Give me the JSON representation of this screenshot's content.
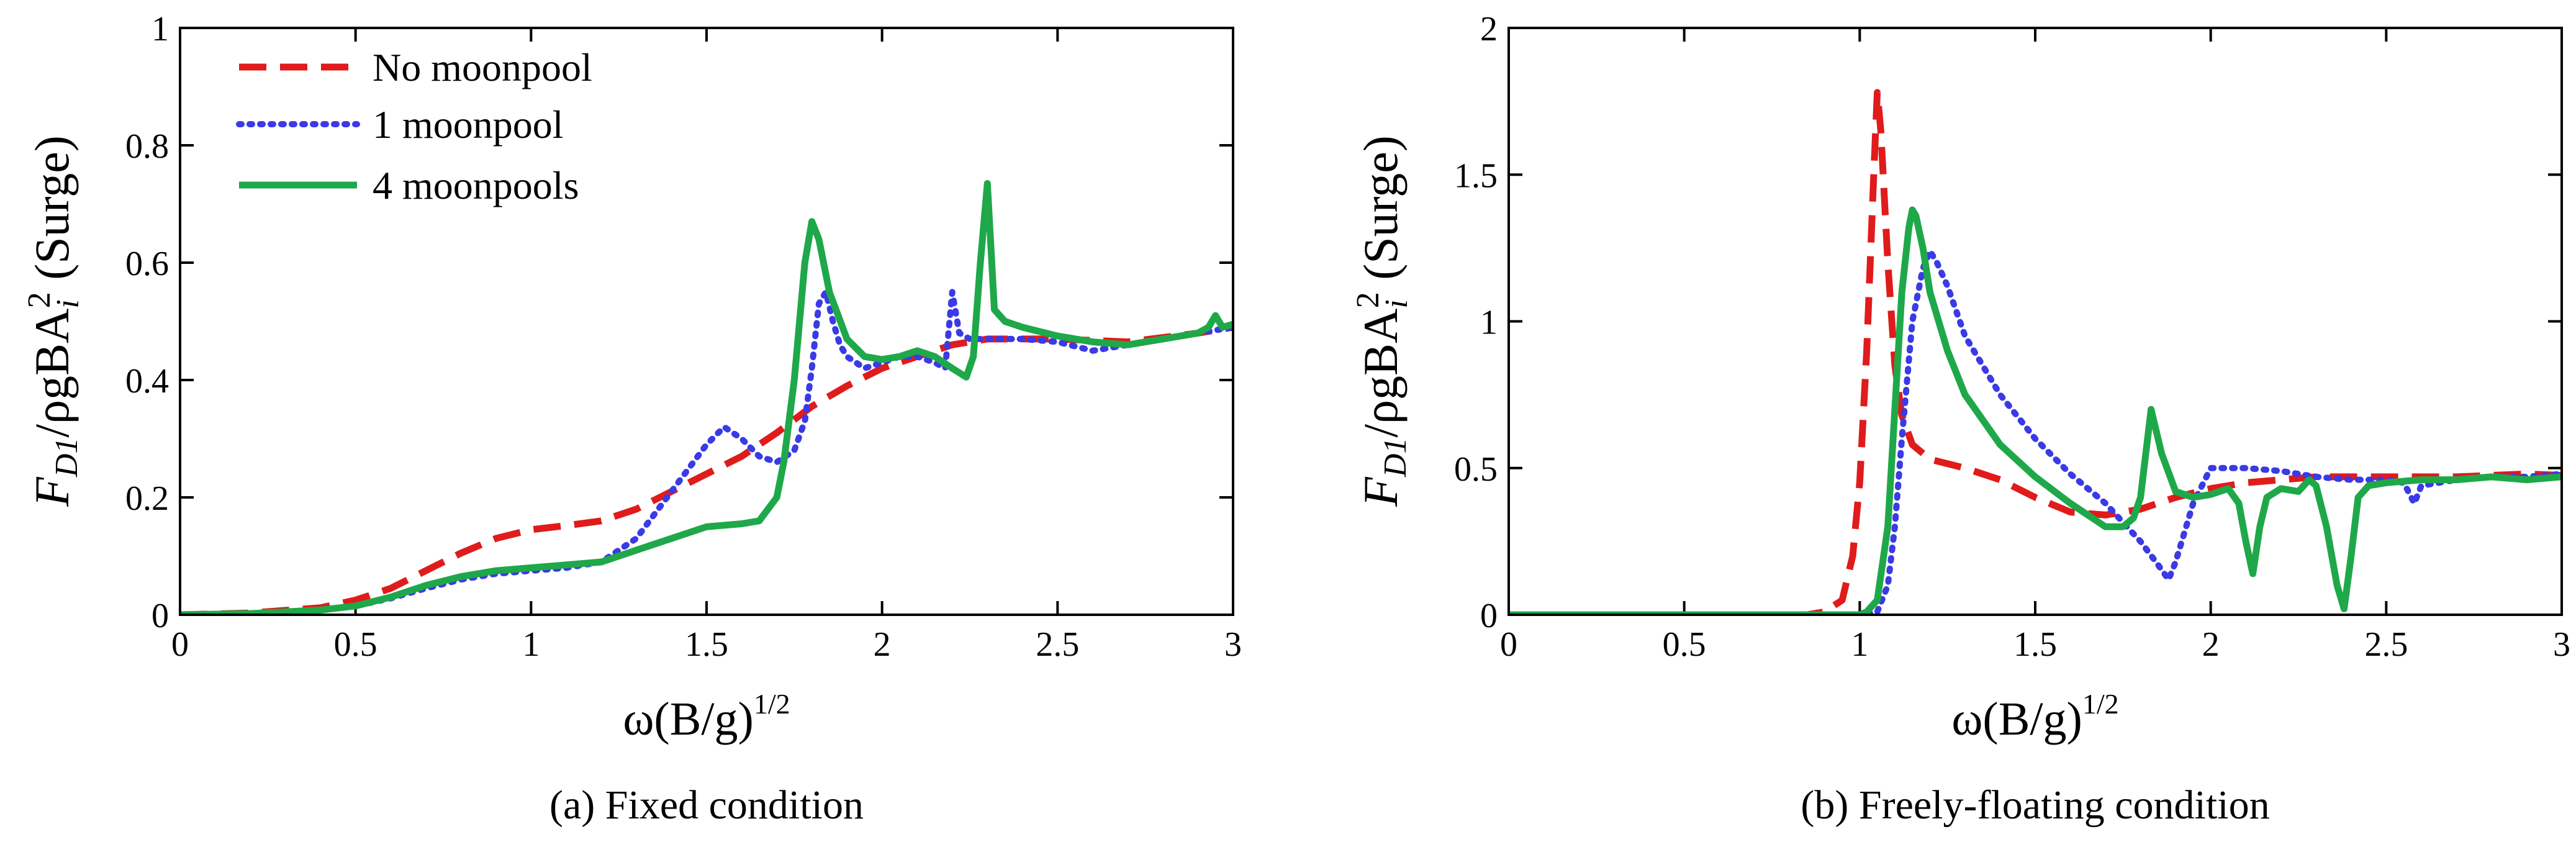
{
  "colors": {
    "no_moonpool": "#e01b1b",
    "one_moonpool": "#3a3ae6",
    "four_moonpools": "#1fa84a",
    "axis": "#000000"
  },
  "chart_data": [
    {
      "type": "line",
      "caption_tag": "(a)",
      "caption_text": "Fixed condition",
      "ylabel": "F_D1/ρgBA_i² (Surge)",
      "ylabel_parts": {
        "F": "F",
        "sub": "D1",
        "mid": "/ρgBA",
        "sub2": "i",
        "sup": "2",
        "tail": " (Surge)"
      },
      "xlabel": "ω(B/g)^1/2",
      "xlabel_parts": {
        "base": "ω(B/g)",
        "sup": "1/2"
      },
      "xlim": [
        0,
        3
      ],
      "ylim": [
        0,
        1
      ],
      "xticks": [
        0,
        0.5,
        1,
        1.5,
        2,
        2.5,
        3
      ],
      "xtick_labels": [
        "0",
        "0.5",
        "1",
        "1.5",
        "2",
        "2.5",
        "3"
      ],
      "yticks": [
        0,
        0.2,
        0.4,
        0.6,
        0.8,
        1
      ],
      "ytick_labels": [
        "0",
        "0.2",
        "0.4",
        "0.6",
        "0.8",
        "1"
      ],
      "legend": {
        "position": "top-left",
        "entries": [
          "No moonpool",
          "1 moonpool",
          "4 moonpools"
        ]
      },
      "series": [
        {
          "name": "No moonpool",
          "style": "dashed",
          "x": [
            0,
            0.2,
            0.4,
            0.5,
            0.6,
            0.7,
            0.8,
            0.9,
            1.0,
            1.1,
            1.2,
            1.3,
            1.4,
            1.5,
            1.6,
            1.7,
            1.8,
            1.9,
            2.0,
            2.1,
            2.2,
            2.3,
            2.5,
            2.7,
            2.9,
            3.0
          ],
          "y": [
            0,
            0.003,
            0.012,
            0.025,
            0.045,
            0.075,
            0.105,
            0.13,
            0.145,
            0.152,
            0.16,
            0.18,
            0.21,
            0.24,
            0.27,
            0.31,
            0.355,
            0.39,
            0.42,
            0.44,
            0.46,
            0.47,
            0.47,
            0.465,
            0.48,
            0.49
          ]
        },
        {
          "name": "1 moonpool",
          "style": "dotted",
          "x": [
            0,
            0.2,
            0.4,
            0.5,
            0.6,
            0.7,
            0.8,
            0.9,
            1.0,
            1.1,
            1.2,
            1.3,
            1.4,
            1.5,
            1.55,
            1.6,
            1.65,
            1.7,
            1.75,
            1.78,
            1.8,
            1.82,
            1.84,
            1.86,
            1.88,
            1.9,
            1.95,
            2.0,
            2.05,
            2.1,
            2.15,
            2.18,
            2.2,
            2.22,
            2.25,
            2.3,
            2.4,
            2.5,
            2.6,
            2.7,
            2.8,
            2.9,
            3.0
          ],
          "y": [
            0,
            0.002,
            0.008,
            0.015,
            0.028,
            0.045,
            0.06,
            0.07,
            0.075,
            0.08,
            0.09,
            0.13,
            0.21,
            0.29,
            0.32,
            0.3,
            0.27,
            0.26,
            0.28,
            0.33,
            0.42,
            0.53,
            0.55,
            0.5,
            0.46,
            0.44,
            0.42,
            0.43,
            0.44,
            0.44,
            0.43,
            0.42,
            0.55,
            0.48,
            0.47,
            0.47,
            0.47,
            0.465,
            0.45,
            0.46,
            0.47,
            0.48,
            0.49
          ]
        },
        {
          "name": "4 moonpools",
          "style": "solid",
          "x": [
            0,
            0.2,
            0.4,
            0.5,
            0.6,
            0.7,
            0.8,
            0.9,
            1.0,
            1.1,
            1.2,
            1.3,
            1.4,
            1.5,
            1.6,
            1.65,
            1.7,
            1.72,
            1.75,
            1.78,
            1.8,
            1.82,
            1.85,
            1.9,
            1.95,
            2.0,
            2.05,
            2.1,
            2.15,
            2.2,
            2.24,
            2.26,
            2.28,
            2.3,
            2.32,
            2.35,
            2.4,
            2.5,
            2.6,
            2.7,
            2.8,
            2.9,
            2.93,
            2.95,
            2.97,
            3.0
          ],
          "y": [
            0,
            0.002,
            0.008,
            0.015,
            0.03,
            0.05,
            0.065,
            0.075,
            0.08,
            0.085,
            0.09,
            0.11,
            0.13,
            0.15,
            0.155,
            0.16,
            0.2,
            0.26,
            0.4,
            0.6,
            0.67,
            0.64,
            0.55,
            0.47,
            0.44,
            0.435,
            0.44,
            0.45,
            0.44,
            0.42,
            0.405,
            0.44,
            0.6,
            0.735,
            0.52,
            0.5,
            0.49,
            0.475,
            0.465,
            0.46,
            0.47,
            0.48,
            0.49,
            0.51,
            0.49,
            0.495
          ]
        }
      ]
    },
    {
      "type": "line",
      "caption_tag": "(b)",
      "caption_text": "Freely-floating condition",
      "ylabel": "F_D1/ρgBA_i² (Surge)",
      "ylabel_parts": {
        "F": "F",
        "sub": "D1",
        "mid": "/ρgBA",
        "sub2": "i",
        "sup": "2",
        "tail": " (Surge)"
      },
      "xlabel": "ω(B/g)^1/2",
      "xlabel_parts": {
        "base": "ω(B/g)",
        "sup": "1/2"
      },
      "xlim": [
        0,
        3
      ],
      "ylim": [
        0,
        2
      ],
      "xticks": [
        0,
        0.5,
        1,
        1.5,
        2,
        2.5,
        3
      ],
      "xtick_labels": [
        "0",
        "0.5",
        "1",
        "1.5",
        "2",
        "2.5",
        "3"
      ],
      "yticks": [
        0,
        0.5,
        1,
        1.5,
        2
      ],
      "ytick_labels": [
        "0",
        "0.5",
        "1",
        "1.5",
        "2"
      ],
      "series": [
        {
          "name": "No moonpool",
          "style": "dashed",
          "x": [
            0,
            0.5,
            0.85,
            0.9,
            0.95,
            0.98,
            1.0,
            1.02,
            1.04,
            1.05,
            1.06,
            1.08,
            1.1,
            1.12,
            1.15,
            1.2,
            1.3,
            1.4,
            1.5,
            1.6,
            1.7,
            1.8,
            1.9,
            2.0,
            2.1,
            2.2,
            2.3,
            2.5,
            2.7,
            2.9,
            3.0
          ],
          "y": [
            0,
            0,
            0,
            0.01,
            0.05,
            0.2,
            0.45,
            0.9,
            1.5,
            1.78,
            1.65,
            1.2,
            0.85,
            0.68,
            0.58,
            0.53,
            0.5,
            0.46,
            0.4,
            0.35,
            0.34,
            0.36,
            0.4,
            0.43,
            0.45,
            0.46,
            0.47,
            0.47,
            0.47,
            0.48,
            0.475
          ]
        },
        {
          "name": "1 moonpool",
          "style": "dotted",
          "x": [
            0,
            0.5,
            0.9,
            1.0,
            1.05,
            1.08,
            1.1,
            1.12,
            1.15,
            1.18,
            1.2,
            1.22,
            1.25,
            1.3,
            1.4,
            1.5,
            1.6,
            1.7,
            1.8,
            1.85,
            1.88,
            1.9,
            1.95,
            2.0,
            2.1,
            2.2,
            2.3,
            2.4,
            2.5,
            2.55,
            2.58,
            2.6,
            2.7,
            2.8,
            2.9,
            3.0
          ],
          "y": [
            0,
            0,
            0,
            0,
            0.01,
            0.1,
            0.3,
            0.6,
            1.0,
            1.18,
            1.24,
            1.2,
            1.12,
            0.95,
            0.75,
            0.6,
            0.48,
            0.38,
            0.25,
            0.17,
            0.12,
            0.18,
            0.38,
            0.5,
            0.5,
            0.49,
            0.47,
            0.46,
            0.46,
            0.45,
            0.38,
            0.44,
            0.46,
            0.47,
            0.47,
            0.48
          ]
        },
        {
          "name": "4 moonpools",
          "style": "solid",
          "x": [
            0,
            0.5,
            1.0,
            1.02,
            1.05,
            1.08,
            1.1,
            1.12,
            1.14,
            1.15,
            1.16,
            1.18,
            1.2,
            1.25,
            1.3,
            1.4,
            1.5,
            1.6,
            1.7,
            1.75,
            1.78,
            1.8,
            1.83,
            1.86,
            1.9,
            1.95,
            2.0,
            2.05,
            2.08,
            2.1,
            2.12,
            2.14,
            2.16,
            2.2,
            2.25,
            2.28,
            2.3,
            2.33,
            2.36,
            2.38,
            2.4,
            2.42,
            2.45,
            2.5,
            2.6,
            2.7,
            2.8,
            2.9,
            3.0
          ],
          "y": [
            0,
            0,
            0,
            0.01,
            0.05,
            0.3,
            0.7,
            1.1,
            1.32,
            1.38,
            1.36,
            1.25,
            1.1,
            0.9,
            0.75,
            0.58,
            0.47,
            0.38,
            0.3,
            0.3,
            0.33,
            0.4,
            0.7,
            0.55,
            0.42,
            0.4,
            0.41,
            0.43,
            0.38,
            0.25,
            0.14,
            0.3,
            0.4,
            0.43,
            0.42,
            0.46,
            0.44,
            0.3,
            0.1,
            0.02,
            0.2,
            0.4,
            0.44,
            0.45,
            0.46,
            0.46,
            0.47,
            0.46,
            0.47
          ]
        }
      ]
    }
  ]
}
